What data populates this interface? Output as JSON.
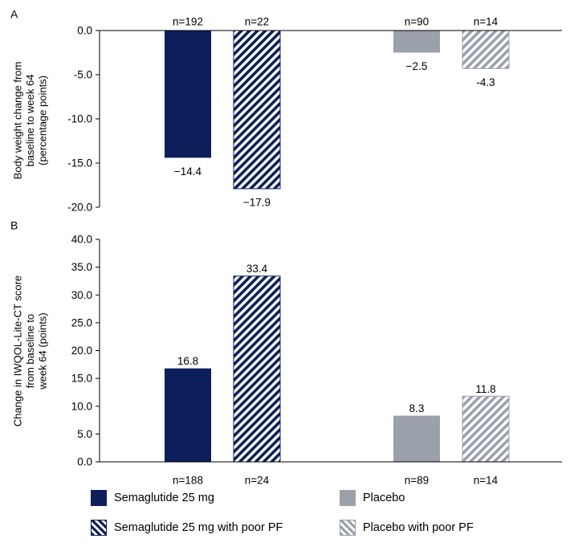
{
  "chart_data": [
    {
      "type": "bar",
      "panel_label": "A",
      "ylabel_lines": [
        "Body weight change from",
        "baseline to week 64",
        "(percentage points)"
      ],
      "ylim": [
        -20.0,
        0.0
      ],
      "yticks": [
        "0.0",
        "-5.0",
        "-10.0",
        "-15.0",
        "-20.0"
      ],
      "series": [
        {
          "name": "Semaglutide 25 mg",
          "value": -14.4,
          "value_label": "−14.4",
          "n_label": "n=192",
          "color": "#0d1f5a",
          "pattern": "solid"
        },
        {
          "name": "Semaglutide 25 mg with poor PF",
          "value": -17.9,
          "value_label": "−17.9",
          "n_label": "n=22",
          "color": "#0d1f5a",
          "pattern": "hatched"
        },
        {
          "name": "Placebo",
          "value": -2.5,
          "value_label": "−2.5",
          "n_label": "n=90",
          "color": "#9ba1ab",
          "pattern": "solid"
        },
        {
          "name": "Placebo with poor PF",
          "value": -4.3,
          "value_label": "-4.3",
          "n_label": "n=14",
          "color": "#9ba1ab",
          "pattern": "hatched"
        }
      ]
    },
    {
      "type": "bar",
      "panel_label": "B",
      "ylabel_lines": [
        "Change in IWQOL-Lite-CT score",
        "from baseline to",
        "week 64 (points)"
      ],
      "ylim": [
        0.0,
        40.0
      ],
      "yticks": [
        "0.0",
        "5.0",
        "10.0",
        "15.0",
        "20.0",
        "25.0",
        "30.0",
        "35.0",
        "40.0"
      ],
      "series": [
        {
          "name": "Semaglutide 25 mg",
          "value": 16.8,
          "value_label": "16.8",
          "n_label": "n=188",
          "color": "#0d1f5a",
          "pattern": "solid"
        },
        {
          "name": "Semaglutide 25 mg with poor PF",
          "value": 33.4,
          "value_label": "33.4",
          "n_label": "n=24",
          "color": "#0d1f5a",
          "pattern": "hatched"
        },
        {
          "name": "Placebo",
          "value": 8.3,
          "value_label": "8.3",
          "n_label": "n=89",
          "color": "#9ba1ab",
          "pattern": "solid"
        },
        {
          "name": "Placebo with poor PF",
          "value": 11.8,
          "value_label": "11.8",
          "n_label": "n=14",
          "color": "#9ba1ab",
          "pattern": "hatched"
        }
      ]
    }
  ],
  "legend": {
    "sema": "Semaglutide  25 mg",
    "sema_pf": "Semaglutide  25 mg with poor PF",
    "placebo": "Placebo",
    "placebo_pf": "Placebo with poor PF"
  }
}
